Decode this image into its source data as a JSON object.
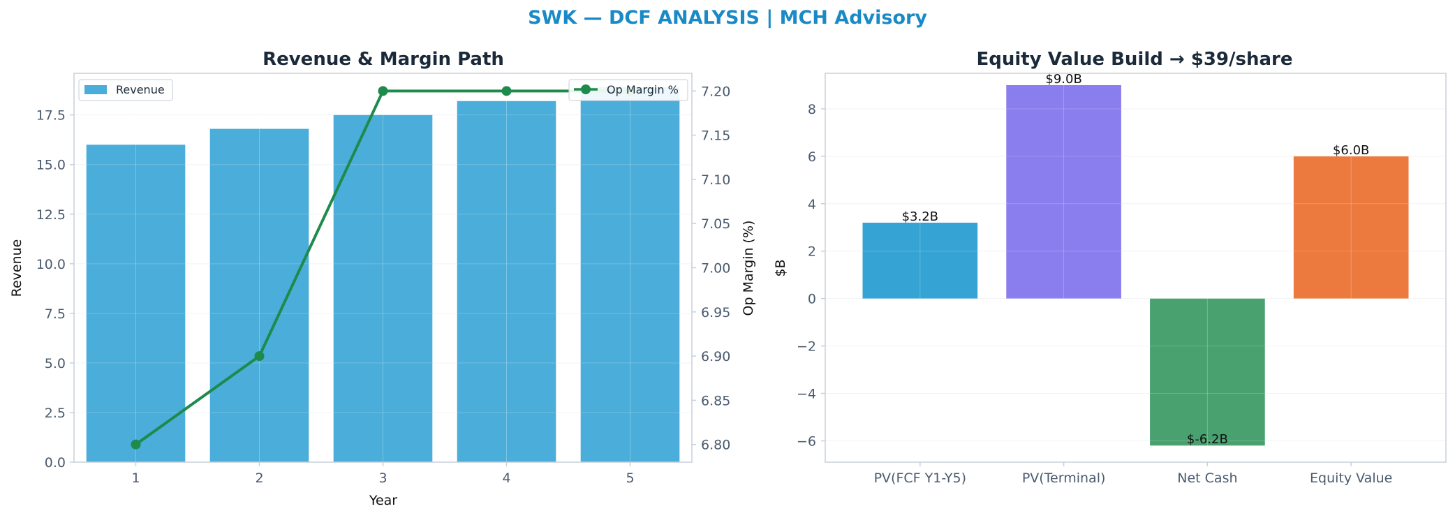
{
  "suptitle": "SWK — DCF ANALYSIS | MCH Advisory",
  "colors": {
    "title_blue": "#1a8ac6",
    "dark_text": "#1b2a3a",
    "tick_text": "#4a5a6e",
    "revenue_bar": "#4badd9",
    "margin_line": "#1e8a4c",
    "axis_spine": "#c8d0da",
    "grid": "#eef1f5",
    "waterfall": [
      "#35a3d4",
      "#8a7ded",
      "#48a16f",
      "#ec7a3e"
    ]
  },
  "chart_data": [
    {
      "type": "bar",
      "title": "Revenue & Margin Path",
      "xlabel": "Year",
      "ylabel": "Revenue",
      "y2label": "Op Margin (%)",
      "categories": [
        "1",
        "2",
        "3",
        "4",
        "5"
      ],
      "series": [
        {
          "name": "Revenue",
          "type": "bar",
          "axis": "left",
          "values": [
            16.0,
            16.8,
            17.5,
            18.2,
            18.9
          ]
        },
        {
          "name": "Op Margin %",
          "type": "line",
          "axis": "right",
          "values": [
            6.8,
            6.9,
            7.2,
            7.2,
            7.2
          ]
        }
      ],
      "ylim": [
        0,
        19.6
      ],
      "y2lim": [
        6.78,
        7.22
      ],
      "yticks": [
        "0.0",
        "2.5",
        "5.0",
        "7.5",
        "10.0",
        "12.5",
        "15.0",
        "17.5"
      ],
      "y2ticks": [
        "6.80",
        "6.85",
        "6.90",
        "6.95",
        "7.00",
        "7.05",
        "7.10",
        "7.15",
        "7.20"
      ],
      "legend_left": "upper-left",
      "legend_right": "upper-right",
      "grid": true
    },
    {
      "type": "bar",
      "title": "Equity Value Build → $39/share",
      "xlabel": "",
      "ylabel": "$B",
      "categories": [
        "PV(FCF Y1-Y5)",
        "PV(Terminal)",
        "Net Cash",
        "Equity Value"
      ],
      "values": [
        3.2,
        9.0,
        -6.2,
        6.0
      ],
      "data_labels": [
        "$3.2B",
        "$9.0B",
        "$-6.2B",
        "$6.0B"
      ],
      "ylim": [
        -6.9,
        9.5
      ],
      "yticks": [
        "−6",
        "−4",
        "−2",
        "0",
        "2",
        "4",
        "6",
        "8"
      ],
      "grid": true
    }
  ]
}
